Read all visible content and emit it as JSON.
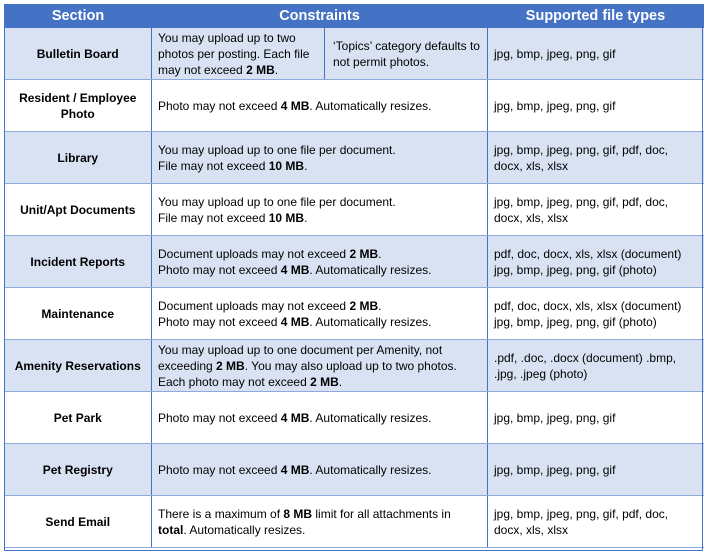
{
  "headers": {
    "section": "Section",
    "constraints": "Constraints",
    "types": "Supported file types"
  },
  "rows": [
    {
      "section": "Bulletin Board",
      "constraint_parts": [
        {
          "t": "You may upload up to two photos per posting. Each file may not exceed "
        },
        {
          "t": "2 MB",
          "b": true
        },
        {
          "t": "."
        }
      ],
      "constraint_note": "‘Topics’ category defaults to not permit photos.",
      "types": "jpg, bmp, jpeg, png, gif"
    },
    {
      "section": "Resident / Employee Photo",
      "constraint_parts": [
        {
          "t": "Photo may not exceed "
        },
        {
          "t": "4 MB",
          "b": true
        },
        {
          "t": ". Automatically resizes."
        }
      ],
      "types": "jpg, bmp, jpeg, png, gif"
    },
    {
      "section": "Library",
      "constraint_parts": [
        {
          "t": "You may upload up to one file per document."
        },
        {
          "br": true
        },
        {
          "t": "File may not exceed "
        },
        {
          "t": "10 MB",
          "b": true
        },
        {
          "t": "."
        }
      ],
      "types": "jpg, bmp, jpeg, png, gif, pdf, doc, docx, xls, xlsx"
    },
    {
      "section": "Unit/Apt Documents",
      "constraint_parts": [
        {
          "t": "You may upload up to one file per document."
        },
        {
          "br": true
        },
        {
          "t": "File may not exceed "
        },
        {
          "t": "10 MB",
          "b": true
        },
        {
          "t": "."
        }
      ],
      "types": "jpg, bmp, jpeg, png, gif, pdf, doc, docx, xls, xlsx"
    },
    {
      "section": "Incident Reports",
      "constraint_parts": [
        {
          "t": "Document uploads may not exceed "
        },
        {
          "t": "2 MB",
          "b": true
        },
        {
          "t": "."
        },
        {
          "br": true
        },
        {
          "t": "Photo may not exceed "
        },
        {
          "t": "4 MB",
          "b": true
        },
        {
          "t": ". Automatically resizes."
        }
      ],
      "types": "pdf, doc, docx, xls, xlsx (document) jpg, bmp, jpeg, png, gif (photo)"
    },
    {
      "section": "Maintenance",
      "constraint_parts": [
        {
          "t": "Document uploads may not exceed "
        },
        {
          "t": "2 MB",
          "b": true
        },
        {
          "t": "."
        },
        {
          "br": true
        },
        {
          "t": "Photo may not exceed "
        },
        {
          "t": "4 MB",
          "b": true
        },
        {
          "t": ". Automatically resizes."
        }
      ],
      "types": "pdf, doc, docx, xls, xlsx (document) jpg, bmp, jpeg, png, gif (photo)"
    },
    {
      "section": "Amenity Reservations",
      "constraint_parts": [
        {
          "t": "You may upload up to one document per Amenity, not exceeding "
        },
        {
          "t": "2 MB",
          "b": true
        },
        {
          "t": ". You may also upload up to two photos. Each photo may not exceed "
        },
        {
          "t": "2 MB",
          "b": true
        },
        {
          "t": "."
        }
      ],
      "types": ".pdf, .doc, .docx (document) .bmp, .jpg, .jpeg (photo)"
    },
    {
      "section": "Pet Park",
      "constraint_parts": [
        {
          "t": "Photo may not exceed "
        },
        {
          "t": "4 MB",
          "b": true
        },
        {
          "t": ". Automatically resizes."
        }
      ],
      "types": "jpg, bmp, jpeg, png, gif"
    },
    {
      "section": "Pet Registry",
      "constraint_parts": [
        {
          "t": "Photo may not exceed "
        },
        {
          "t": "4 MB",
          "b": true
        },
        {
          "t": ". Automatically resizes."
        }
      ],
      "types": "jpg, bmp, jpeg, png, gif"
    },
    {
      "section": "Send Email",
      "constraint_parts": [
        {
          "t": "There is a maximum of "
        },
        {
          "t": "8 MB",
          "b": true
        },
        {
          "t": " limit for all attachments in "
        },
        {
          "t": "total",
          "b": true
        },
        {
          "t": ". Automatically resizes."
        }
      ],
      "types": "jpg, bmp, jpeg, png, gif, pdf, doc, docx, xls, xlsx"
    }
  ],
  "colors": {
    "header_bg": "#4472c4",
    "header_text": "#ffffff",
    "band": "#d9e2f3",
    "rule": "#4472c4"
  }
}
